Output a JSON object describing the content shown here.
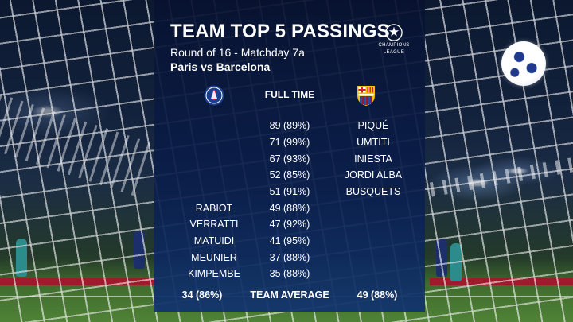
{
  "graphic": {
    "title": "TEAM TOP 5 PASSINGS",
    "subtitle": "Round of 16 - Matchday 7a",
    "matchup": "Paris vs Barcelona",
    "competition": {
      "line1": "CHAMPIONS",
      "line2": "LEAGUE",
      "icon": "champions-league-star-ball-icon"
    },
    "home_crest_icon": "psg-crest-icon",
    "away_crest_icon": "barcelona-crest-icon",
    "column_header": "FULL TIME",
    "rows": [
      {
        "home_player": "",
        "value": "89 (89%)",
        "away_player": "PIQUÉ"
      },
      {
        "home_player": "",
        "value": "71 (99%)",
        "away_player": "UMTITI"
      },
      {
        "home_player": "",
        "value": "67 (93%)",
        "away_player": "INIESTA"
      },
      {
        "home_player": "",
        "value": "52 (85%)",
        "away_player": "JORDI ALBA"
      },
      {
        "home_player": "",
        "value": "51 (91%)",
        "away_player": "BUSQUETS"
      },
      {
        "home_player": "RABIOT",
        "value": "49 (88%)",
        "away_player": ""
      },
      {
        "home_player": "VERRATTI",
        "value": "47 (92%)",
        "away_player": ""
      },
      {
        "home_player": "MATUIDI",
        "value": "41 (95%)",
        "away_player": ""
      },
      {
        "home_player": "MEUNIER",
        "value": "37 (88%)",
        "away_player": ""
      },
      {
        "home_player": "KIMPEMBE",
        "value": "35 (88%)",
        "away_player": ""
      }
    ],
    "team_average": {
      "label": "TEAM AVERAGE",
      "home": "34 (86%)",
      "away": "49 (88%)"
    }
  },
  "colors": {
    "panel": "#0a1e4b",
    "text": "#ffffff",
    "psg_blue": "#1b3f8f",
    "psg_red": "#d6203a",
    "barca_blue": "#1d4fa8",
    "barca_red": "#a0133a",
    "barca_gold": "#f2c300"
  }
}
